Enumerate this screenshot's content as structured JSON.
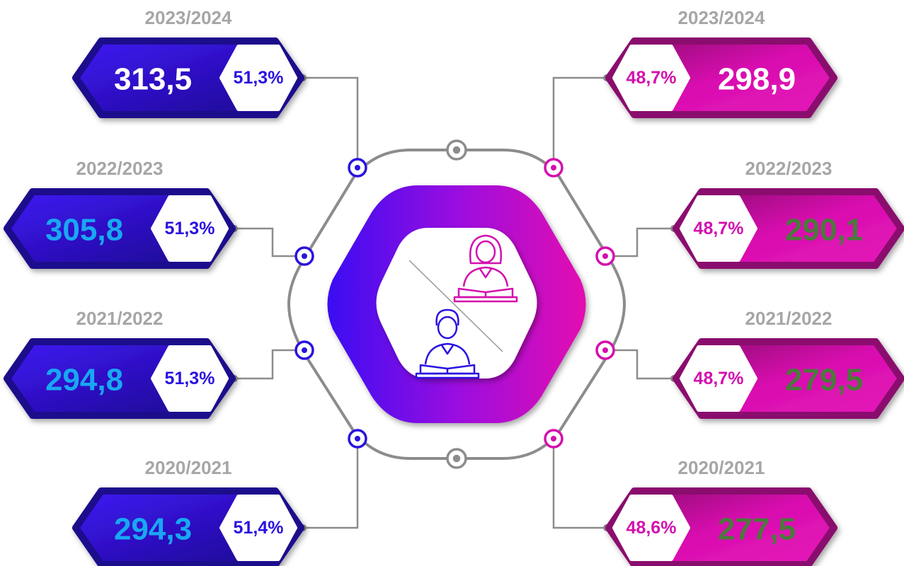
{
  "left": [
    {
      "year": "2023/2024",
      "value": "313,5",
      "percent": "51,3%"
    },
    {
      "year": "2022/2023",
      "value": "305,8",
      "percent": "51,3%"
    },
    {
      "year": "2021/2022",
      "value": "294,8",
      "percent": "51,3%"
    },
    {
      "year": "2020/2021",
      "value": "294,3",
      "percent": "51,4%"
    }
  ],
  "right": [
    {
      "year": "2023/2024",
      "value": "298,9",
      "percent": "48,7%"
    },
    {
      "year": "2022/2023",
      "value": "290,1",
      "percent": "48,7%"
    },
    {
      "year": "2021/2022",
      "value": "279,5",
      "percent": "48,7%"
    },
    {
      "year": "2020/2021",
      "value": "277,5",
      "percent": "48,6%"
    }
  ]
}
